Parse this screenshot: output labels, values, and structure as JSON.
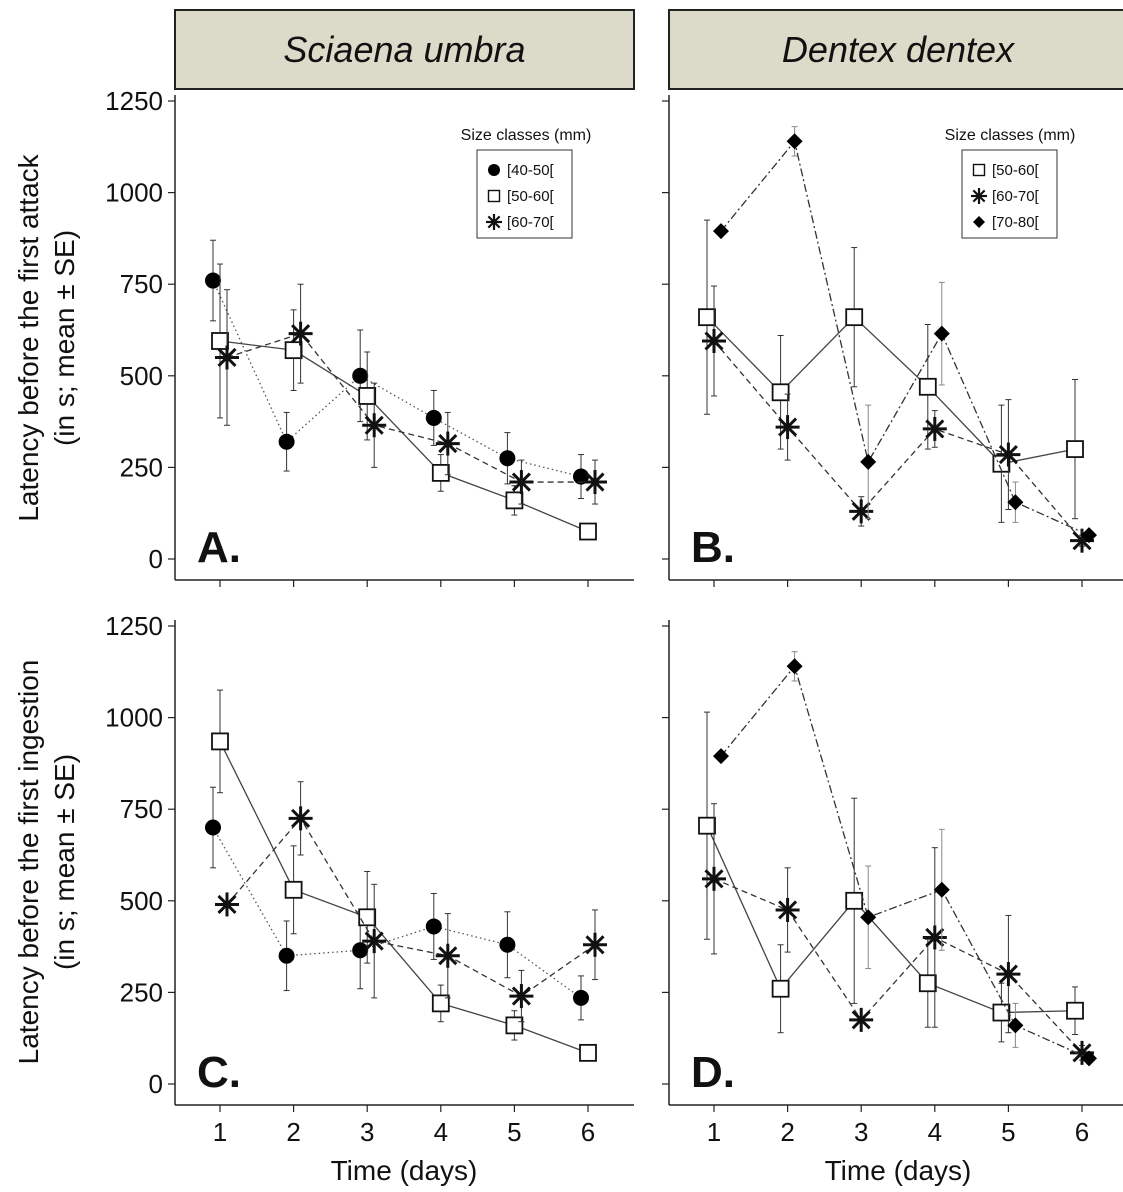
{
  "figure": {
    "strips": [
      "Sciaena umbra",
      "Dentex dentex"
    ],
    "ylabel_top_line1": "Latency before the first attack",
    "ylabel_top_line2": "(in s; mean ± SE)",
    "ylabel_bottom_line1": "Latency before the first ingestion",
    "ylabel_bottom_line2": "(in s; mean ± SE)",
    "xlabel": "Time (days)",
    "legend_title": "Size classes (mm)"
  },
  "chart_data": [
    {
      "panel": "A.",
      "species": "Sciaena umbra",
      "type": "line",
      "ylabel": "Latency before the first attack (in s; mean ± SE)",
      "xlabel": "",
      "x": [
        1,
        2,
        3,
        4,
        5,
        6
      ],
      "ylim": [
        0,
        1250
      ],
      "yticks": [
        0,
        250,
        500,
        750,
        1000,
        1250
      ],
      "legend": "top-right",
      "series": [
        {
          "name": "[40-50[",
          "marker": "circle",
          "line": "dotted",
          "offset": -1,
          "values": [
            760,
            320,
            500,
            385,
            275,
            225
          ],
          "se": [
            110,
            80,
            125,
            75,
            70,
            60
          ]
        },
        {
          "name": "[50-60[",
          "marker": "square",
          "line": "solid",
          "offset": 0,
          "values": [
            595,
            570,
            445,
            235,
            160,
            75
          ],
          "se": [
            210,
            110,
            120,
            50,
            40,
            15
          ]
        },
        {
          "name": "[60-70[",
          "marker": "asterisk",
          "line": "dashed",
          "offset": 1,
          "values": [
            550,
            615,
            365,
            315,
            210,
            210
          ],
          "se": [
            185,
            135,
            115,
            85,
            60,
            60
          ]
        }
      ]
    },
    {
      "panel": "B.",
      "species": "Dentex dentex",
      "type": "line",
      "ylabel": "",
      "xlabel": "",
      "x": [
        1,
        2,
        3,
        4,
        5,
        6
      ],
      "ylim": [
        0,
        1250
      ],
      "yticks": [
        0,
        250,
        500,
        750,
        1000,
        1250
      ],
      "legend": "top-right",
      "series": [
        {
          "name": "[50-60[",
          "marker": "square",
          "line": "solid",
          "offset": -1,
          "values": [
            660,
            455,
            660,
            470,
            260,
            300
          ],
          "se": [
            265,
            155,
            190,
            170,
            160,
            190
          ]
        },
        {
          "name": "[60-70[",
          "marker": "asterisk",
          "line": "dashed",
          "offset": 0,
          "values": [
            595,
            360,
            130,
            355,
            285,
            50
          ],
          "se": [
            150,
            90,
            40,
            50,
            150,
            15
          ]
        },
        {
          "name": "[70-80[",
          "marker": "diamond",
          "line": "dashdot",
          "offset": 1,
          "values": [
            895,
            1140,
            265,
            615,
            155,
            65
          ],
          "se": [
            0,
            40,
            155,
            140,
            55,
            0
          ]
        }
      ]
    },
    {
      "panel": "C.",
      "species": "Sciaena umbra",
      "type": "line",
      "ylabel": "Latency before the first ingestion (in s; mean ± SE)",
      "xlabel": "Time (days)",
      "x": [
        1,
        2,
        3,
        4,
        5,
        6
      ],
      "ylim": [
        0,
        1250
      ],
      "yticks": [
        0,
        250,
        500,
        750,
        1000,
        1250
      ],
      "legend": "none",
      "series": [
        {
          "name": "[40-50[",
          "marker": "circle",
          "line": "dotted",
          "offset": -1,
          "values": [
            700,
            350,
            365,
            430,
            380,
            235
          ],
          "se": [
            110,
            95,
            105,
            90,
            90,
            60
          ]
        },
        {
          "name": "[50-60[",
          "marker": "square",
          "line": "solid",
          "offset": 0,
          "values": [
            935,
            530,
            455,
            220,
            160,
            85
          ],
          "se": [
            140,
            120,
            125,
            50,
            40,
            15
          ]
        },
        {
          "name": "[60-70[",
          "marker": "asterisk",
          "line": "dashed",
          "offset": 1,
          "values": [
            490,
            725,
            390,
            350,
            240,
            380
          ],
          "se": [
            0,
            100,
            155,
            115,
            70,
            95
          ]
        }
      ]
    },
    {
      "panel": "D.",
      "species": "Dentex dentex",
      "type": "line",
      "ylabel": "",
      "xlabel": "Time (days)",
      "x": [
        1,
        2,
        3,
        4,
        5,
        6
      ],
      "ylim": [
        0,
        1250
      ],
      "yticks": [
        0,
        250,
        500,
        750,
        1000,
        1250
      ],
      "legend": "none",
      "series": [
        {
          "name": "[50-60[",
          "marker": "square",
          "line": "solid",
          "offset": -1,
          "values": [
            705,
            260,
            500,
            275,
            195,
            200
          ],
          "se": [
            310,
            120,
            280,
            120,
            80,
            65
          ]
        },
        {
          "name": "[60-70[",
          "marker": "asterisk",
          "line": "dashed",
          "offset": 0,
          "values": [
            560,
            475,
            175,
            400,
            300,
            85
          ],
          "se": [
            205,
            115,
            0,
            245,
            160,
            20
          ]
        },
        {
          "name": "[70-80[",
          "marker": "diamond",
          "line": "dashdot",
          "offset": 1,
          "values": [
            895,
            1140,
            455,
            530,
            160,
            70
          ],
          "se": [
            0,
            40,
            140,
            165,
            60,
            0
          ]
        }
      ]
    }
  ]
}
